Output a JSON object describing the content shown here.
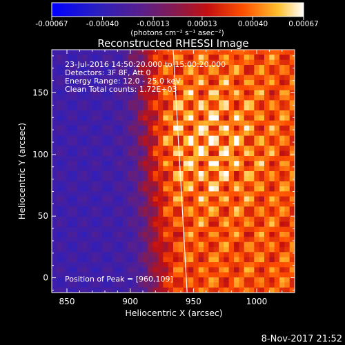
{
  "colorbar": {
    "ticks": [
      "-0.00067",
      "-0.00040",
      "-0.00013",
      "0.00013",
      "0.00040",
      "0.00067"
    ],
    "tick_values": [
      -0.00067,
      -0.0004,
      -0.00013,
      0.00013,
      0.0004,
      0.00067
    ],
    "range": [
      -0.00067,
      0.00067
    ],
    "unit_label": "(photons cm⁻² s⁻¹ asec⁻²)",
    "colors": [
      "#0000ff",
      "#3d1f9a",
      "#7a1a5a",
      "#c01010",
      "#ff5a00",
      "#ffc830",
      "#ffffff"
    ]
  },
  "chart_data": {
    "type": "heatmap",
    "title": "Reconstructed RHESSI Image",
    "xlabel": "Heliocentric X (arcsec)",
    "ylabel": "Heliocentric Y (arcsec)",
    "xlim": [
      838,
      1030
    ],
    "ylim": [
      -12,
      185
    ],
    "x_ticks": [
      850,
      900,
      950,
      1000
    ],
    "y_ticks": [
      0,
      50,
      100,
      150
    ],
    "peak": [
      960,
      109
    ],
    "limb_line": [
      [
        934,
        185
      ],
      [
        945,
        -12
      ]
    ],
    "annotations": [
      "23-Jul-2016 14:50:20.000 to 15:00:20.000",
      "Detectors: 3F 8F, Att 0",
      "Energy Range: 12.0 - 25.0 keV",
      "Clean     Total counts: 1.72E+03"
    ],
    "peak_label": "Position of Peak = [960,109]"
  },
  "footer": {
    "timestamp": "8-Nov-2017 21:52"
  }
}
